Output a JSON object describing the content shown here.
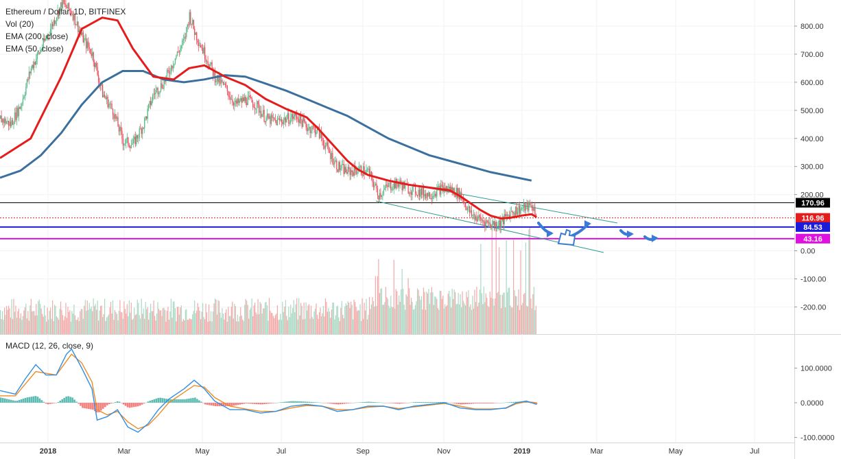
{
  "legend": {
    "title": "Ethereum / Dollar, 1D, BITFINEX",
    "vol": "Vol (20)",
    "ema200": "EMA (200, close)",
    "ema50": "EMA (50, close)"
  },
  "macd_label": "MACD (12, 26, close, 9)",
  "colors": {
    "up": "#53b987",
    "down": "#eb4d5c",
    "ema50": "#e51c1c",
    "ema200": "#3a6f9e",
    "channel": "#2a9d8f",
    "line_170": "#000000",
    "line_84": "#1c1cd8",
    "line_43": "#e010e0",
    "annotation": "#3a7bd5",
    "vol_up": "#a9d9c4",
    "vol_down": "#f2a9a8",
    "macd": "#2f8ee5",
    "signal": "#f08a24"
  },
  "chart_data": [
    {
      "type": "candlestick",
      "title": "Ethereum / Dollar, 1D, BITFINEX",
      "price_axis": [
        "800.00",
        "700.00",
        "600.00",
        "500.00",
        "400.00",
        "300.00",
        "200.00",
        "0.00",
        "-100.00",
        "-200.00"
      ],
      "price_ticks": [
        800,
        700,
        600,
        500,
        400,
        300,
        200,
        0,
        -100,
        -200
      ],
      "ylim": [
        -290,
        900
      ],
      "x_labels": [
        "2018",
        "Mar",
        "May",
        "Jul",
        "Sep",
        "Nov",
        "2019",
        "Mar",
        "May",
        "Jul"
      ],
      "horizontal_levels": [
        {
          "value": 170.96,
          "label": "170.96",
          "color": "#000000",
          "style": "solid"
        },
        {
          "value": 116.96,
          "label": "116.96",
          "color": "#e51c1c",
          "style": "dotted"
        },
        {
          "value": 84.53,
          "label": "84.53",
          "color": "#1c1cd8",
          "style": "solid"
        },
        {
          "value": 43.16,
          "label": "43.16",
          "color": "#e010e0",
          "style": "solid"
        }
      ],
      "price_path": [
        [
          0,
          470
        ],
        [
          10,
          450
        ],
        [
          20,
          520
        ],
        [
          30,
          650
        ],
        [
          40,
          720
        ],
        [
          50,
          800
        ],
        [
          60,
          880
        ],
        [
          70,
          850
        ],
        [
          80,
          760
        ],
        [
          90,
          700
        ],
        [
          100,
          560
        ],
        [
          110,
          500
        ],
        [
          120,
          390
        ],
        [
          130,
          380
        ],
        [
          140,
          450
        ],
        [
          150,
          560
        ],
        [
          160,
          600
        ],
        [
          170,
          680
        ],
        [
          180,
          750
        ],
        [
          185,
          840
        ],
        [
          190,
          780
        ],
        [
          200,
          700
        ],
        [
          210,
          620
        ],
        [
          220,
          580
        ],
        [
          230,
          520
        ],
        [
          240,
          540
        ],
        [
          250,
          520
        ],
        [
          260,
          470
        ],
        [
          270,
          460
        ],
        [
          280,
          470
        ],
        [
          290,
          480
        ],
        [
          300,
          440
        ],
        [
          310,
          430
        ],
        [
          320,
          360
        ],
        [
          330,
          300
        ],
        [
          340,
          280
        ],
        [
          350,
          290
        ],
        [
          360,
          280
        ],
        [
          370,
          200
        ],
        [
          380,
          230
        ],
        [
          390,
          240
        ],
        [
          400,
          220
        ],
        [
          410,
          210
        ],
        [
          420,
          200
        ],
        [
          430,
          220
        ],
        [
          440,
          220
        ],
        [
          450,
          200
        ],
        [
          460,
          130
        ],
        [
          470,
          110
        ],
        [
          480,
          95
        ],
        [
          490,
          100
        ],
        [
          500,
          140
        ],
        [
          510,
          150
        ],
        [
          520,
          160
        ],
        [
          525,
          130
        ]
      ],
      "ema50_path": [
        [
          0,
          330
        ],
        [
          30,
          400
        ],
        [
          60,
          620
        ],
        [
          80,
          790
        ],
        [
          100,
          830
        ],
        [
          115,
          820
        ],
        [
          130,
          720
        ],
        [
          150,
          620
        ],
        [
          170,
          610
        ],
        [
          185,
          650
        ],
        [
          200,
          660
        ],
        [
          220,
          620
        ],
        [
          240,
          590
        ],
        [
          260,
          540
        ],
        [
          280,
          505
        ],
        [
          300,
          475
        ],
        [
          310,
          440
        ],
        [
          320,
          400
        ],
        [
          330,
          360
        ],
        [
          340,
          320
        ],
        [
          350,
          290
        ],
        [
          360,
          270
        ],
        [
          380,
          250
        ],
        [
          400,
          235
        ],
        [
          420,
          225
        ],
        [
          440,
          215
        ],
        [
          450,
          195
        ],
        [
          460,
          170
        ],
        [
          470,
          145
        ],
        [
          480,
          125
        ],
        [
          490,
          115
        ],
        [
          500,
          118
        ],
        [
          510,
          125
        ],
        [
          520,
          130
        ],
        [
          525,
          120
        ]
      ],
      "ema200_path": [
        [
          0,
          260
        ],
        [
          20,
          285
        ],
        [
          40,
          340
        ],
        [
          60,
          420
        ],
        [
          80,
          520
        ],
        [
          100,
          600
        ],
        [
          120,
          640
        ],
        [
          140,
          640
        ],
        [
          160,
          610
        ],
        [
          180,
          600
        ],
        [
          200,
          610
        ],
        [
          220,
          625
        ],
        [
          240,
          620
        ],
        [
          260,
          595
        ],
        [
          280,
          570
        ],
        [
          300,
          540
        ],
        [
          320,
          510
        ],
        [
          340,
          480
        ],
        [
          360,
          440
        ],
        [
          380,
          400
        ],
        [
          400,
          370
        ],
        [
          420,
          340
        ],
        [
          440,
          320
        ],
        [
          460,
          300
        ],
        [
          480,
          280
        ],
        [
          500,
          265
        ],
        [
          520,
          250
        ]
      ],
      "volume_hint": "Vol (20)",
      "macd": {
        "label": "MACD (12, 26, close, 9)",
        "axis": [
          "100.0000",
          "0.0000",
          "-100.0000"
        ],
        "ticks": [
          100,
          0,
          -100
        ],
        "ylim": [
          -110,
          180
        ],
        "macd_path": [
          [
            0,
            35
          ],
          [
            15,
            25
          ],
          [
            25,
            70
          ],
          [
            35,
            110
          ],
          [
            45,
            80
          ],
          [
            55,
            80
          ],
          [
            65,
            140
          ],
          [
            70,
            155
          ],
          [
            80,
            100
          ],
          [
            90,
            40
          ],
          [
            95,
            -50
          ],
          [
            105,
            -40
          ],
          [
            115,
            -20
          ],
          [
            125,
            -70
          ],
          [
            135,
            -85
          ],
          [
            145,
            -60
          ],
          [
            155,
            -20
          ],
          [
            165,
            10
          ],
          [
            180,
            40
          ],
          [
            190,
            65
          ],
          [
            200,
            40
          ],
          [
            210,
            5
          ],
          [
            225,
            -20
          ],
          [
            240,
            -20
          ],
          [
            255,
            -30
          ],
          [
            270,
            -25
          ],
          [
            285,
            -10
          ],
          [
            300,
            -5
          ],
          [
            315,
            -10
          ],
          [
            330,
            -25
          ],
          [
            345,
            -20
          ],
          [
            360,
            -10
          ],
          [
            375,
            -10
          ],
          [
            390,
            -20
          ],
          [
            405,
            -10
          ],
          [
            420,
            -5
          ],
          [
            435,
            0
          ],
          [
            450,
            -15
          ],
          [
            465,
            -20
          ],
          [
            480,
            -20
          ],
          [
            495,
            -15
          ],
          [
            505,
            0
          ],
          [
            515,
            5
          ],
          [
            525,
            -5
          ]
        ],
        "signal_path": [
          [
            0,
            20
          ],
          [
            15,
            20
          ],
          [
            25,
            55
          ],
          [
            35,
            90
          ],
          [
            45,
            85
          ],
          [
            55,
            80
          ],
          [
            65,
            120
          ],
          [
            70,
            140
          ],
          [
            80,
            115
          ],
          [
            90,
            60
          ],
          [
            95,
            -20
          ],
          [
            105,
            -35
          ],
          [
            115,
            -25
          ],
          [
            125,
            -55
          ],
          [
            135,
            -75
          ],
          [
            145,
            -65
          ],
          [
            155,
            -35
          ],
          [
            165,
            0
          ],
          [
            180,
            30
          ],
          [
            190,
            50
          ],
          [
            200,
            45
          ],
          [
            210,
            15
          ],
          [
            225,
            -10
          ],
          [
            240,
            -18
          ],
          [
            255,
            -25
          ],
          [
            270,
            -25
          ],
          [
            285,
            -15
          ],
          [
            300,
            -8
          ],
          [
            315,
            -10
          ],
          [
            330,
            -20
          ],
          [
            345,
            -20
          ],
          [
            360,
            -13
          ],
          [
            375,
            -10
          ],
          [
            390,
            -17
          ],
          [
            405,
            -12
          ],
          [
            420,
            -7
          ],
          [
            435,
            -2
          ],
          [
            450,
            -10
          ],
          [
            465,
            -18
          ],
          [
            480,
            -18
          ],
          [
            495,
            -16
          ],
          [
            505,
            -3
          ],
          [
            515,
            3
          ],
          [
            525,
            0
          ]
        ]
      }
    }
  ]
}
